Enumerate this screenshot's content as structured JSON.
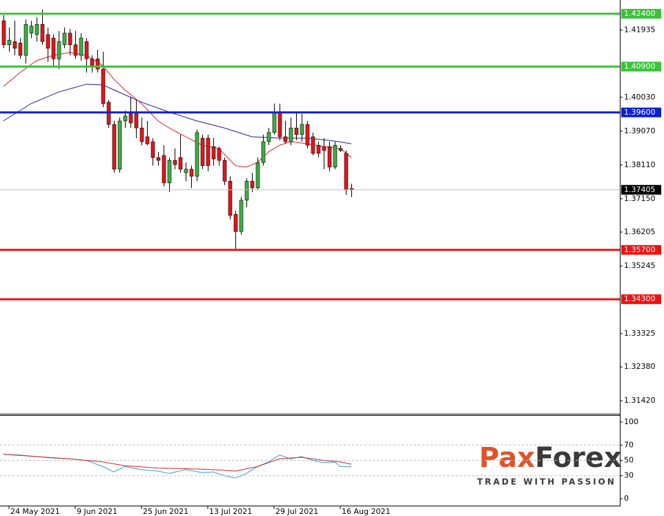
{
  "chart_data": [
    {
      "type": "candlestick",
      "categories": [
        null,
        "24 May 2021",
        null,
        null,
        null,
        null,
        null,
        null,
        null,
        null,
        null,
        null,
        null,
        "9 Jun 2021",
        null,
        null,
        null,
        null,
        null,
        null,
        null,
        null,
        null,
        null,
        null,
        "25 Jun 2021",
        null,
        null,
        null,
        null,
        null,
        null,
        null,
        null,
        null,
        null,
        null,
        "13 Jul 2021",
        null,
        null,
        null,
        null,
        null,
        null,
        null,
        null,
        null,
        null,
        null,
        "29 Jul 2021",
        null,
        null,
        null,
        null,
        null,
        null,
        null,
        null,
        null,
        null,
        null,
        "16 Aug 2021",
        null,
        null
      ],
      "open": [
        1.422,
        1.4152,
        1.4161,
        1.4157,
        1.4122,
        1.4185,
        1.4181,
        1.421,
        1.4181,
        1.4171,
        1.4112,
        1.4152,
        1.4185,
        1.4152,
        1.4122,
        1.4161,
        1.4112,
        1.4112,
        1.4083,
        1.3989,
        1.3926,
        1.3799,
        1.3936,
        1.3956,
        1.3956,
        1.3916,
        1.3891,
        1.3877,
        1.3832,
        1.3838,
        1.376,
        1.3824,
        1.3832,
        1.3789,
        1.3799,
        1.3779,
        1.3887,
        1.3887,
        1.3863,
        1.3858,
        1.3824,
        1.3765,
        1.3671,
        1.3622,
        1.3711,
        1.3765,
        1.3746,
        1.3818,
        1.3877,
        1.3903,
        1.3961,
        1.3891,
        1.3877,
        1.3916,
        1.3897,
        1.3926,
        1.3891,
        1.3867,
        1.3863,
        1.3863,
        1.3805,
        1.3858,
        1.3844,
        1.3744
      ],
      "high": [
        1.4236,
        1.4201,
        1.422,
        1.4171,
        1.4224,
        1.422,
        1.423,
        1.4252,
        1.4201,
        1.4181,
        1.4191,
        1.4201,
        1.4197,
        1.4191,
        1.4185,
        1.4171,
        1.4122,
        1.4138,
        1.4132,
        1.3995,
        1.3936,
        1.3946,
        1.3965,
        1.4005,
        1.3995,
        1.3946,
        1.3936,
        1.3887,
        1.3848,
        1.3867,
        1.3832,
        1.3858,
        1.3897,
        1.3818,
        1.3809,
        1.3911,
        1.3897,
        1.3897,
        1.3887,
        1.3863,
        1.3832,
        1.3779,
        1.3681,
        1.372,
        1.3773,
        1.3789,
        1.3832,
        1.3897,
        1.3916,
        1.3985,
        1.3985,
        1.3936,
        1.3946,
        1.3961,
        1.3956,
        1.3936,
        1.3903,
        1.3877,
        1.3887,
        1.3877,
        1.3877,
        1.3867,
        1.3852,
        1.3758
      ],
      "low": [
        1.4142,
        1.4132,
        1.4122,
        1.4112,
        1.4099,
        1.4171,
        1.4161,
        1.4152,
        1.4103,
        1.4093,
        1.4083,
        1.4142,
        1.4122,
        1.4112,
        1.4107,
        1.4073,
        1.4073,
        1.4073,
        1.3975,
        1.3916,
        1.3789,
        1.3789,
        1.3916,
        1.3916,
        1.3887,
        1.3867,
        1.3867,
        1.3809,
        1.3809,
        1.375,
        1.3734,
        1.3799,
        1.3789,
        1.3765,
        1.3746,
        1.3765,
        1.3799,
        1.3793,
        1.3809,
        1.3809,
        1.3754,
        1.3656,
        1.3573,
        1.3613,
        1.3691,
        1.3734,
        1.374,
        1.3809,
        1.3867,
        1.3897,
        1.3881,
        1.3871,
        1.3867,
        1.3881,
        1.3877,
        1.3858,
        1.3838,
        1.3832,
        1.3799,
        1.3793,
        1.3799,
        1.3848,
        1.3726,
        1.372
      ],
      "close": [
        1.4152,
        1.4165,
        1.4142,
        1.4122,
        1.421,
        1.4205,
        1.421,
        1.4161,
        1.4142,
        1.4112,
        1.4161,
        1.4185,
        1.4152,
        1.4122,
        1.4171,
        1.4112,
        1.4093,
        1.4083,
        1.3985,
        1.3926,
        1.3799,
        1.3936,
        1.395,
        1.393,
        1.3916,
        1.3877,
        1.3871,
        1.3832,
        1.3824,
        1.376,
        1.3824,
        1.3812,
        1.3799,
        1.3799,
        1.3779,
        1.3903,
        1.3809,
        1.3809,
        1.3828,
        1.3824,
        1.3765,
        1.3668,
        1.3622,
        1.3711,
        1.3765,
        1.3746,
        1.3818,
        1.3877,
        1.3903,
        1.3961,
        1.3891,
        1.3877,
        1.3916,
        1.3897,
        1.3926,
        1.3867,
        1.3844,
        1.3844,
        1.3852,
        1.3805,
        1.3867,
        1.3852,
        1.374,
        1.3741
      ],
      "up_color": "#3cb043",
      "down_color": "#e3161b",
      "lines": [
        {
          "color": "#1a1aa8",
          "x": [
            0,
            5,
            10,
            15,
            18,
            20,
            25,
            30,
            35,
            40,
            45,
            50,
            55,
            60,
            63
          ],
          "values": [
            1.3936,
            1.3985,
            1.4018,
            1.404,
            1.4038,
            1.4024,
            1.3989,
            1.3961,
            1.3936,
            1.3916,
            1.3891,
            1.3887,
            1.3887,
            1.3879,
            1.3871
          ]
        },
        {
          "color": "#e01e1e",
          "x": [
            0,
            3,
            6,
            9,
            12,
            15,
            18,
            20,
            22,
            25,
            28,
            30,
            33,
            36,
            39,
            42,
            44,
            46,
            48,
            50,
            52,
            55,
            58,
            61,
            63
          ],
          "values": [
            1.4034,
            1.4073,
            1.4107,
            1.4122,
            1.413,
            1.4122,
            1.4093,
            1.4054,
            1.4024,
            1.3985,
            1.3936,
            1.3916,
            1.3891,
            1.3867,
            1.3858,
            1.3809,
            1.3805,
            1.3818,
            1.3848,
            1.3867,
            1.3877,
            1.3871,
            1.3863,
            1.3858,
            1.3832
          ]
        }
      ],
      "levels": [
        {
          "value": 1.424,
          "label": "1.42400",
          "color": "#39c239"
        },
        {
          "value": 1.409,
          "label": "1.40900",
          "color": "#39c239"
        },
        {
          "value": 1.396,
          "label": "1.39600",
          "color": "#0b1fd6"
        },
        {
          "value": 1.37405,
          "label": "1.37405",
          "color": "#c0c0c0",
          "label_color": "#000000"
        },
        {
          "value": 1.357,
          "label": "1.35700",
          "color": "#ee1111"
        },
        {
          "value": 1.343,
          "label": "1.34300",
          "color": "#ee1111"
        }
      ],
      "ylim": [
        1.3107,
        1.4279
      ],
      "yticks": [
        1.41935,
        {
          "value": 1.4003,
          "label": "1.40030"
        },
        {
          "value": 1.3907,
          "label": "1.39070"
        },
        {
          "value": 1.3811,
          "label": "1.38110"
        },
        {
          "value": 1.3715,
          "label": "1.37150"
        },
        1.36205,
        1.35245,
        1.33325,
        {
          "value": 1.3238,
          "label": "1.32380"
        },
        {
          "value": 1.3142,
          "label": "1.31420"
        }
      ]
    },
    {
      "type": "line",
      "series": [
        {
          "color": "#2a9fd8",
          "x": [
            0,
            3,
            6,
            9,
            12,
            15,
            18,
            20,
            22,
            25,
            28,
            30,
            33,
            36,
            38,
            40,
            42,
            44,
            46,
            48,
            50,
            52,
            54,
            56,
            58,
            60,
            61,
            63
          ],
          "values": [
            58,
            57,
            55,
            53,
            52,
            50,
            42,
            35,
            42,
            38,
            36,
            33,
            38,
            34,
            35,
            30,
            27,
            33,
            42,
            48,
            57,
            52,
            55,
            50,
            47,
            48,
            42,
            42
          ]
        },
        {
          "color": "#d42020",
          "x": [
            0,
            6,
            12,
            18,
            22,
            28,
            34,
            38,
            42,
            46,
            50,
            54,
            58,
            61,
            63
          ],
          "values": [
            58,
            55,
            52,
            48,
            43,
            40,
            39,
            38,
            36,
            42,
            52,
            54,
            50,
            48,
            45
          ]
        }
      ],
      "ylim": [
        0,
        100
      ],
      "yticks": [
        100,
        70,
        50,
        30,
        0
      ],
      "grid": [
        70,
        50,
        30
      ]
    }
  ],
  "logo": {
    "left": "Pax",
    "right": "Forex",
    "tagline": "TRADE WITH PASSION"
  }
}
